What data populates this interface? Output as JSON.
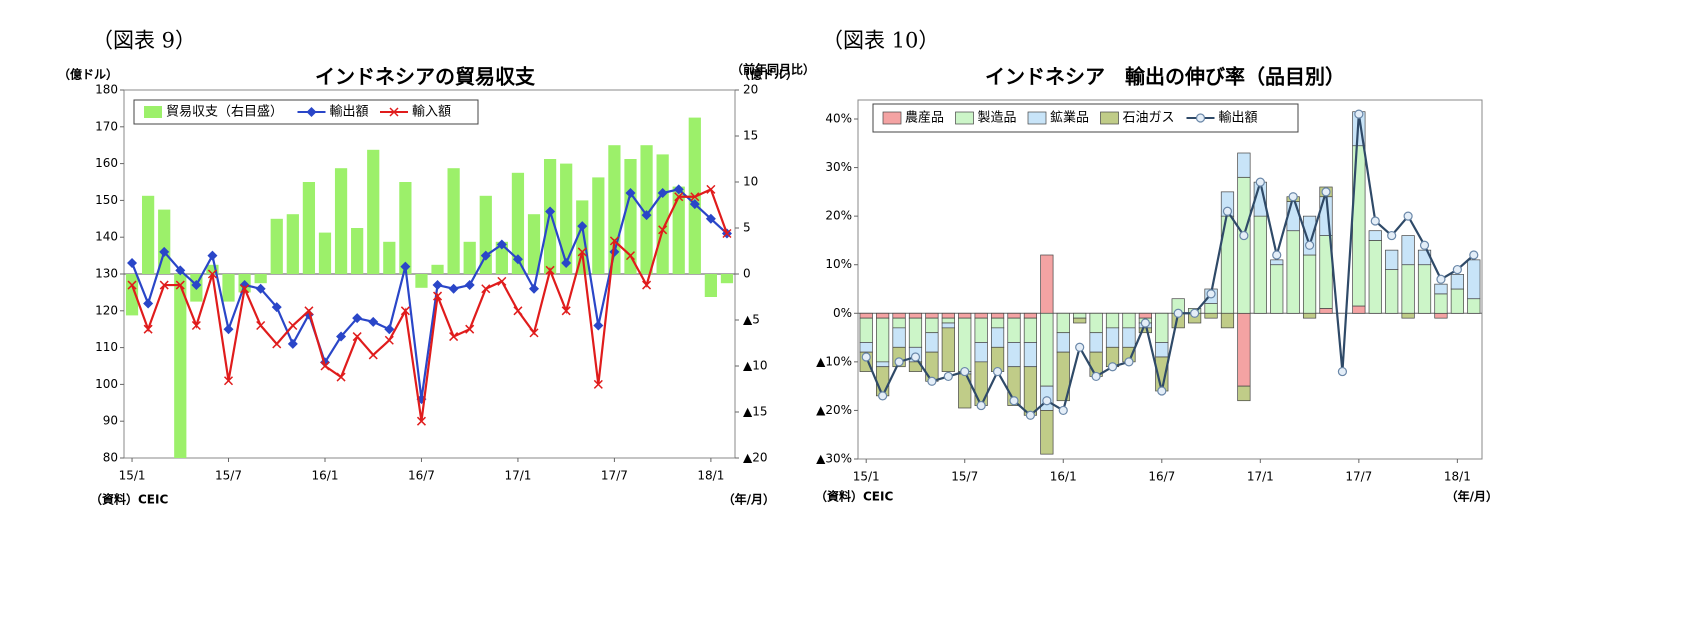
{
  "chart_data": [
    {
      "type": "combo",
      "figure_label": "（図表 9）",
      "title": "インドネシアの貿易収支",
      "y_unit": "（億ドル）",
      "y2_unit": "（億ドル）",
      "source": "（資料）CEIC",
      "x_unit": "（年/月）",
      "categories": [
        "15/1",
        null,
        null,
        null,
        null,
        null,
        "15/7",
        null,
        null,
        null,
        null,
        null,
        "16/1",
        null,
        null,
        null,
        null,
        null,
        "16/7",
        null,
        null,
        null,
        null,
        null,
        "17/1",
        null,
        null,
        null,
        null,
        null,
        "17/7",
        null,
        null,
        null,
        null,
        null,
        "18/1",
        null
      ],
      "ylim": [
        80,
        180
      ],
      "yticks": [
        80,
        90,
        100,
        110,
        120,
        130,
        140,
        150,
        160,
        170,
        180
      ],
      "y2lim": [
        -20,
        20
      ],
      "y2ticks": [
        {
          "value": -20,
          "label": "▲20"
        },
        {
          "value": -15,
          "label": "▲15"
        },
        {
          "value": -10,
          "label": "▲10"
        },
        {
          "value": -5,
          "label": "▲5"
        },
        0,
        5,
        10,
        15,
        20
      ],
      "series": [
        {
          "name": "貿易収支（右目盛）",
          "kind": "bar",
          "axis": "y2",
          "color": "#9cf06a",
          "values": [
            -4.5,
            8.5,
            7,
            -20,
            -3,
            1,
            -3,
            -2,
            -1,
            6,
            6.5,
            10,
            4.5,
            11.5,
            5,
            13.5,
            3.5,
            10,
            -1.5,
            1,
            11.5,
            3.5,
            8.5,
            3.5,
            11,
            6.5,
            12.5,
            12,
            8,
            10.5,
            14,
            12.5,
            14,
            13,
            9.5,
            17,
            -2.5,
            -1
          ]
        },
        {
          "name": "輸出額",
          "kind": "line",
          "marker": "diamond",
          "color": "#2a46c8",
          "values": [
            133,
            122,
            136,
            131,
            127,
            135,
            115,
            127,
            126,
            121,
            111,
            119,
            106,
            113,
            118,
            117,
            115,
            132,
            96,
            127,
            126,
            127,
            135,
            138,
            134,
            126,
            147,
            133,
            143,
            116,
            136,
            152,
            146,
            152,
            153,
            149,
            145,
            141
          ]
        },
        {
          "name": "輸入額",
          "kind": "line",
          "marker": "cross",
          "color": "#e01c1c",
          "values": [
            127,
            115,
            127,
            127,
            116,
            130,
            101,
            126,
            116,
            111,
            116,
            120,
            105,
            102,
            113,
            108,
            112,
            120,
            90,
            124,
            113,
            115,
            126,
            128,
            120,
            114,
            131,
            120,
            136,
            100,
            139,
            135,
            127,
            142,
            151,
            151,
            153,
            141
          ]
        }
      ]
    },
    {
      "type": "combo",
      "figure_label": "（図表 10）",
      "title": "インドネシア　輸出の伸び率（品目別）",
      "y_unit": "（前年同月比）",
      "source": "（資料）CEIC",
      "x_unit": "（年/月）",
      "categories": [
        "15/1",
        null,
        null,
        null,
        null,
        null,
        "15/7",
        null,
        null,
        null,
        null,
        null,
        "16/1",
        null,
        null,
        null,
        null,
        null,
        "16/7",
        null,
        null,
        null,
        null,
        null,
        "17/1",
        null,
        null,
        null,
        null,
        null,
        "17/7",
        null,
        null,
        null,
        null,
        null,
        "18/1",
        null
      ],
      "ylim": [
        -30,
        40
      ],
      "yticks": [
        {
          "value": -30,
          "label": "▲30%"
        },
        {
          "value": -20,
          "label": "▲20%"
        },
        {
          "value": -10,
          "label": "▲10%"
        },
        {
          "value": 0,
          "label": "0%"
        },
        {
          "value": 10,
          "label": "10%"
        },
        {
          "value": 20,
          "label": "20%"
        },
        {
          "value": 30,
          "label": "30%"
        },
        {
          "value": 40,
          "label": "40%"
        }
      ],
      "series": [
        {
          "name": "農産品",
          "kind": "bar",
          "stacked": true,
          "color": "#f4a3a3",
          "values": [
            -1,
            -1,
            -1,
            -1,
            -1,
            -1,
            -1,
            -1,
            -1,
            -1,
            -1,
            12,
            0,
            0,
            0,
            0,
            0,
            -1,
            0,
            0,
            0,
            0,
            0,
            -15,
            0,
            0,
            0,
            0,
            1,
            0,
            1.5,
            0,
            0,
            0,
            0,
            -1,
            0,
            0
          ]
        },
        {
          "name": "製造品",
          "kind": "bar",
          "stacked": true,
          "color": "#ccf5c8",
          "values": [
            -5,
            -9,
            -2,
            -6,
            -3,
            -1,
            -11,
            -5,
            -2,
            -5,
            -5,
            -15,
            -4,
            -1,
            -4,
            -3,
            -3,
            -1,
            -6,
            3,
            1,
            2,
            20,
            28,
            20,
            10,
            17,
            12,
            15,
            0,
            33,
            15,
            9,
            10,
            10,
            4,
            5,
            3
          ]
        },
        {
          "name": "鉱業品",
          "kind": "bar",
          "stacked": true,
          "color": "#c8e4f8",
          "values": [
            -2,
            -1,
            -4,
            -3,
            -4,
            -1,
            -0.5,
            -4,
            -4,
            -5,
            -5,
            -5,
            -4,
            0,
            -4,
            -4,
            -4,
            -1,
            -3,
            0,
            0,
            3,
            5,
            5,
            7,
            1,
            6,
            8,
            8,
            0,
            7,
            2,
            4,
            6,
            3,
            2,
            3,
            8
          ]
        },
        {
          "name": "石油ガス",
          "kind": "bar",
          "stacked": true,
          "color": "#c0cc88",
          "values": [
            -4,
            -6,
            -4,
            -2,
            -6,
            -9,
            -7,
            -9,
            -5,
            -8,
            -10,
            -9,
            -10,
            -1,
            -5,
            -4,
            -3,
            -1,
            -7,
            -3,
            -2,
            -1,
            -3,
            -3,
            0,
            0,
            1,
            -1,
            2,
            0,
            0,
            0,
            0,
            -1,
            0,
            0,
            0,
            0
          ]
        },
        {
          "name": "輸出額",
          "kind": "line",
          "marker": "circle",
          "color": "#2f4a68",
          "values": [
            -9,
            -17,
            -10,
            -9,
            -14,
            -13,
            -12,
            -19,
            -12,
            -18,
            -21,
            -18,
            -20,
            -7,
            -13,
            -11,
            -10,
            -2,
            -16,
            0,
            0,
            4,
            21,
            16,
            27,
            12,
            24,
            14,
            25,
            -12,
            41,
            19,
            16,
            20,
            14,
            7,
            9,
            12
          ]
        }
      ]
    }
  ]
}
